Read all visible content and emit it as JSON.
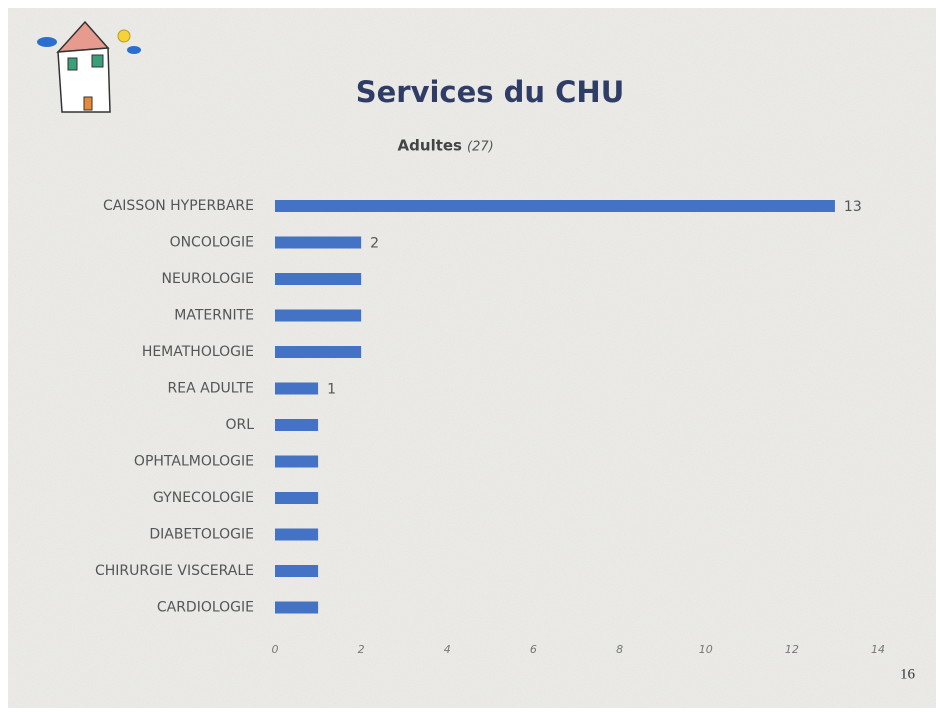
{
  "chart_data": {
    "type": "bar",
    "orientation": "horizontal",
    "title": "Services du CHU",
    "subtitle": "Adultes",
    "subtitle_note": "(27)",
    "categories": [
      "CAISSON HYPERBARE",
      "ONCOLOGIE",
      "NEUROLOGIE",
      "MATERNITE",
      "HEMATHOLOGIE",
      "REA ADULTE",
      "ORL",
      "OPHTALMOLOGIE",
      "GYNECOLOGIE",
      "DIABETOLOGIE",
      "CHIRURGIE VISCERALE",
      "CARDIOLOGIE"
    ],
    "values": [
      13,
      2,
      2,
      2,
      2,
      1,
      1,
      1,
      1,
      1,
      1,
      1
    ],
    "value_labels": [
      "13",
      "2",
      null,
      null,
      null,
      "1",
      null,
      null,
      null,
      null,
      null,
      null
    ],
    "color": "#4472c4",
    "xlim": [
      0,
      14
    ],
    "xticks": [
      0,
      2,
      4,
      6,
      8,
      10,
      12,
      14
    ],
    "grid": false
  },
  "page_number": "16"
}
